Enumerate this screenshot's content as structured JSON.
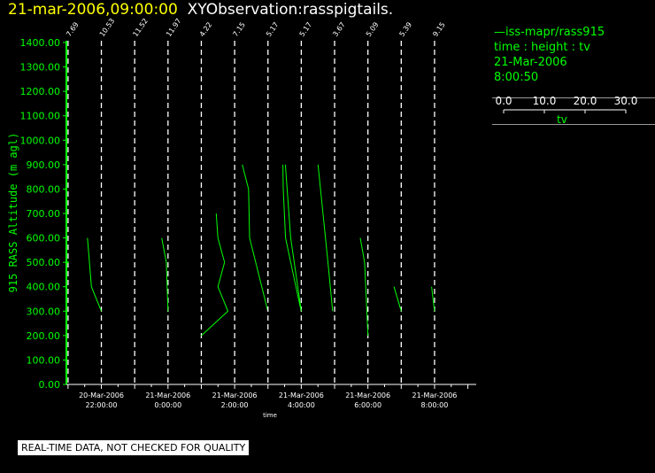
{
  "header": {
    "datetime": "21-mar-2006,09:00:00",
    "title": "XYObservation:rasspigtails."
  },
  "legend": {
    "series_name": "iss-mapr/rass915",
    "dims": "time : height : tv",
    "date": "21-Mar-2006",
    "time": "8:00:50",
    "scale_ticks": [
      "0.0",
      "10.0",
      "20.0",
      "30.0"
    ],
    "scale_label": "tv"
  },
  "notice": "REAL-TIME DATA, NOT CHECKED FOR QUALITY",
  "colors": {
    "background": "#000000",
    "axis": "#ffffff",
    "data": "#00ff00",
    "title_date": "#ffff00"
  },
  "chart_data": {
    "type": "line",
    "ylabel": "915 RASS Altitude (m agl)",
    "xlabel": "time",
    "ylim": [
      0,
      1400
    ],
    "yticks": [
      "0.00",
      "100.00",
      "200.00",
      "300.00",
      "400.00",
      "500.00",
      "600.00",
      "700.00",
      "800.00",
      "900.00",
      "1000.00",
      "1100.00",
      "1200.00",
      "1300.00",
      "1400.00"
    ],
    "x_unit": "hours from 20-Mar-2006 21:00",
    "xlim": [
      -0.05,
      12.25
    ],
    "xtick_labels": [
      {
        "x": 1,
        "date": "20-Mar-2006",
        "time": "22:00:00"
      },
      {
        "x": 3,
        "date": "21-Mar-2006",
        "time": "0:00:00"
      },
      {
        "x": 5,
        "date": "21-Mar-2006",
        "time": "2:00:00"
      },
      {
        "x": 7,
        "date": "21-Mar-2006",
        "time": "4:00:00"
      },
      {
        "x": 9,
        "date": "21-Mar-2006",
        "time": "6:00:00"
      },
      {
        "x": 11,
        "date": "21-Mar-2006",
        "time": "8:00:00"
      }
    ],
    "pigtails": [
      {
        "x": 0,
        "label": "7.69",
        "tv": [
          [
            0,
            500
          ]
        ]
      },
      {
        "x": 1,
        "label": "10.53",
        "tv": [
          [
            -0.42,
            600
          ],
          [
            -0.3,
            400
          ],
          [
            0,
            300
          ]
        ]
      },
      {
        "x": 2,
        "label": "11.52",
        "tv": []
      },
      {
        "x": 3,
        "label": "11.97",
        "tv": [
          [
            -0.19,
            600
          ],
          [
            -0.05,
            500
          ],
          [
            0,
            300
          ]
        ]
      },
      {
        "x": 4,
        "label": "4.22",
        "tv": [
          [
            0,
            200
          ],
          [
            0.8,
            300
          ],
          [
            0.5,
            400
          ],
          [
            0.7,
            500
          ],
          [
            0.5,
            600
          ],
          [
            0.45,
            700
          ]
        ]
      },
      {
        "x": 5,
        "label": "7.15",
        "tv": [
          [
            1,
            300
          ],
          [
            0.45,
            600
          ],
          [
            0.42,
            800
          ],
          [
            0.23,
            900
          ]
        ]
      },
      {
        "x": 6,
        "label": "5.17",
        "tv": [
          [
            1,
            300
          ],
          [
            0.53,
            600
          ],
          [
            0.46,
            800
          ],
          [
            0.45,
            900
          ]
        ]
      },
      {
        "x": 7,
        "label": "5.17",
        "tv": [
          [
            0,
            300
          ],
          [
            -0.32,
            600
          ],
          [
            -0.48,
            900
          ]
        ]
      },
      {
        "x": 8,
        "label": "3.67",
        "tv": [
          [
            -0.06,
            300
          ],
          [
            -0.2,
            500
          ],
          [
            -0.35,
            700
          ],
          [
            -0.5,
            900
          ]
        ]
      },
      {
        "x": 9,
        "label": "5.09",
        "tv": [
          [
            0,
            200
          ],
          [
            -0.1,
            500
          ],
          [
            -0.23,
            600
          ]
        ]
      },
      {
        "x": 10,
        "label": "5.39",
        "tv": [
          [
            0,
            300
          ],
          [
            -0.22,
            400
          ]
        ]
      },
      {
        "x": 11,
        "label": "9.15",
        "tv": [
          [
            0,
            300
          ],
          [
            -0.09,
            400
          ]
        ]
      }
    ]
  }
}
